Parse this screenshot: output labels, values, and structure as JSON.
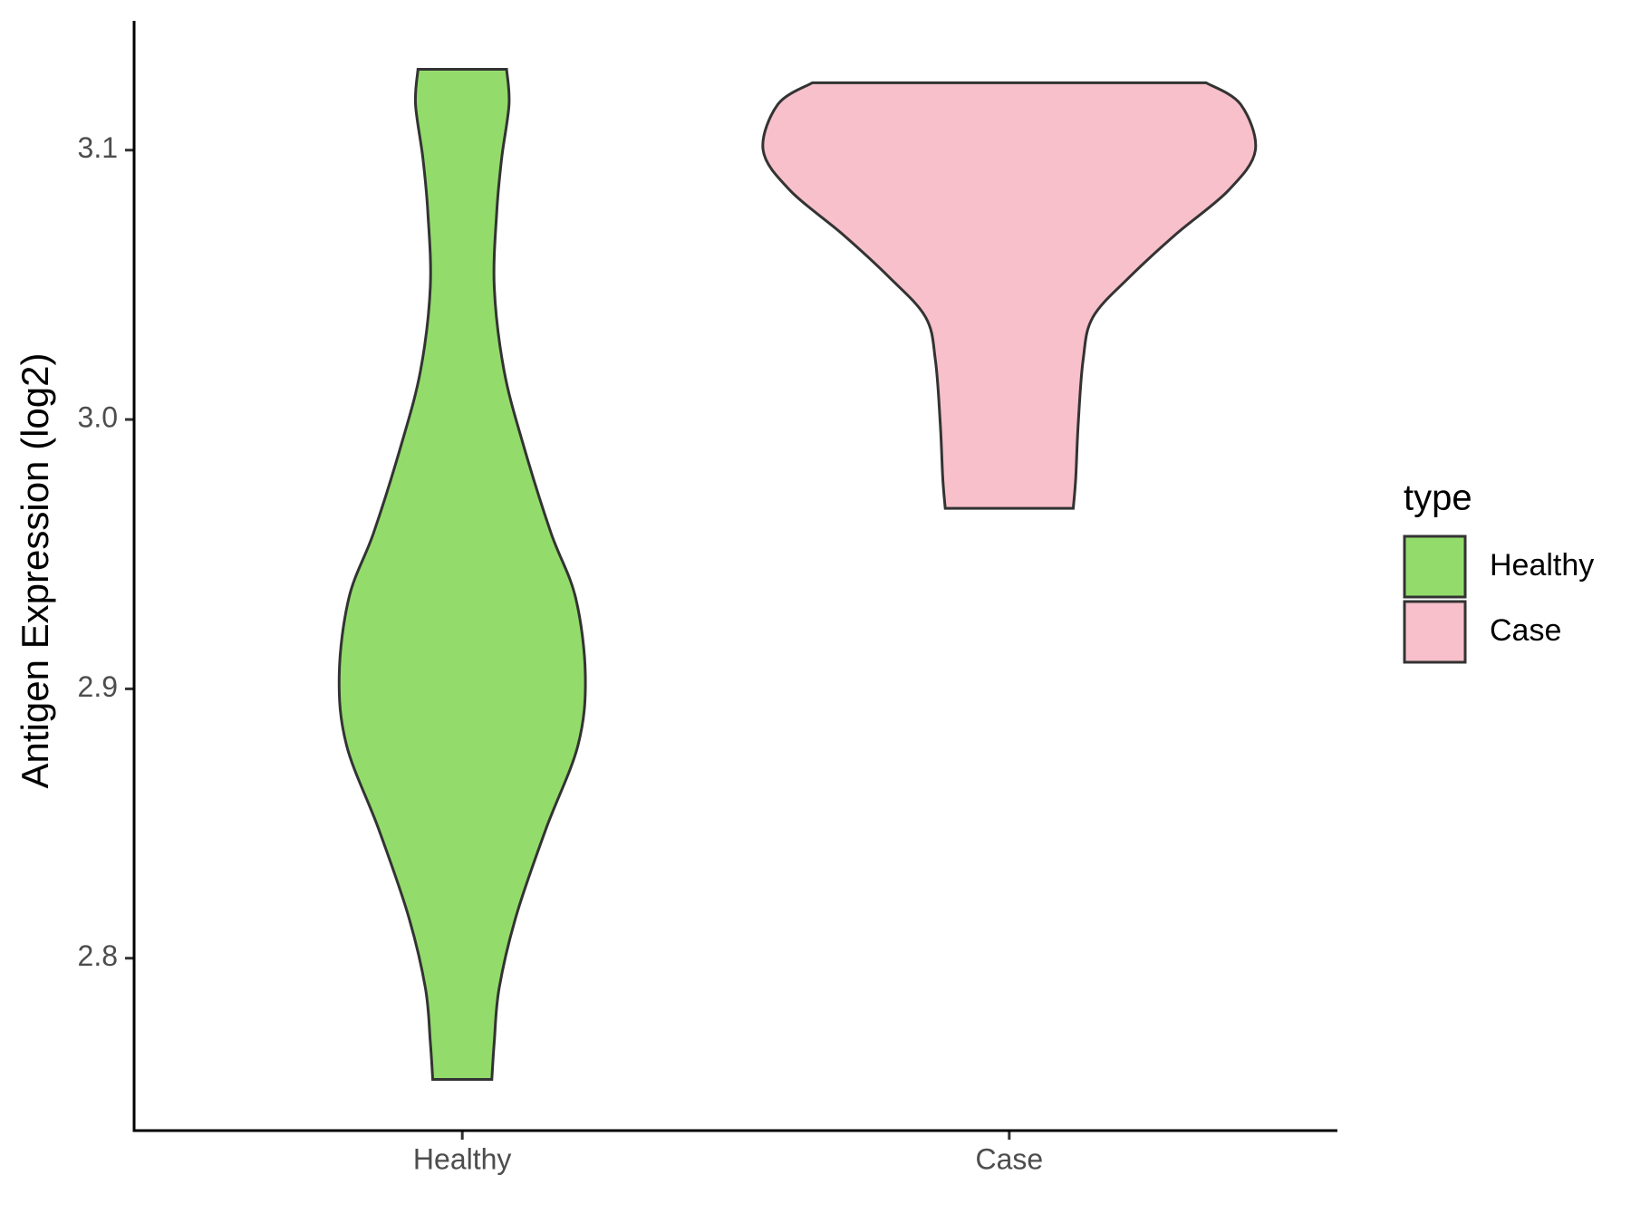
{
  "chart_data": {
    "type": "violin",
    "y_label": "Antigen Expression (log2)",
    "categories": [
      "Healthy",
      "Case"
    ],
    "ylim": [
      2.736,
      3.148
    ],
    "yticks": [
      {
        "value": 2.8,
        "label": "2.8"
      },
      {
        "value": 2.9,
        "label": "2.9"
      },
      {
        "value": 3.0,
        "label": "3.0"
      },
      {
        "value": 3.1,
        "label": "3.1"
      }
    ],
    "legend_title": "type",
    "legend_position": "right",
    "series": [
      {
        "name": "Healthy",
        "color": "#93dc6b",
        "values": [
          3.13,
          3.117,
          3.097,
          3.077,
          3.049,
          3.018,
          2.99,
          2.958,
          2.934,
          2.905,
          2.879,
          2.848,
          2.816,
          2.789,
          2.769,
          2.755
        ],
        "widths": [
          0.18,
          0.19,
          0.16,
          0.14,
          0.13,
          0.17,
          0.25,
          0.36,
          0.46,
          0.5,
          0.47,
          0.34,
          0.22,
          0.15,
          0.13,
          0.12
        ]
      },
      {
        "name": "Case",
        "color": "#f7c0cb",
        "values": [
          3.125,
          3.117,
          3.1,
          3.085,
          3.069,
          3.053,
          3.038,
          3.022,
          2.998,
          2.978,
          2.967
        ],
        "widths": [
          0.8,
          0.94,
          1.0,
          0.89,
          0.68,
          0.49,
          0.34,
          0.3,
          0.28,
          0.27,
          0.26
        ]
      }
    ]
  }
}
